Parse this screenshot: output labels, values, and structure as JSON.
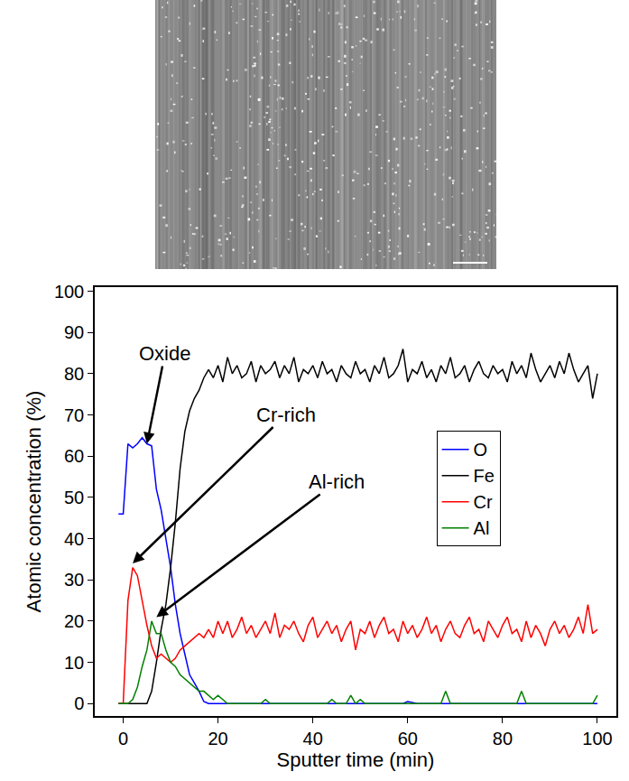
{
  "chart_data": {
    "type": "line",
    "x_label": "Sputter time (min)",
    "y_label": "Atomic concentration (%)",
    "x": [
      -1,
      0,
      1,
      2,
      3,
      4,
      5,
      6,
      7,
      8,
      9,
      10,
      11,
      12,
      13,
      14,
      15,
      16,
      17,
      18,
      19,
      20,
      21,
      22,
      23,
      24,
      25,
      26,
      27,
      28,
      29,
      30,
      31,
      32,
      33,
      34,
      35,
      36,
      37,
      38,
      39,
      40,
      41,
      42,
      43,
      44,
      45,
      46,
      47,
      48,
      49,
      50,
      51,
      52,
      53,
      54,
      55,
      56,
      57,
      58,
      59,
      60,
      61,
      62,
      63,
      64,
      65,
      66,
      67,
      68,
      69,
      70,
      71,
      72,
      73,
      74,
      75,
      76,
      77,
      78,
      79,
      80,
      81,
      82,
      83,
      84,
      85,
      86,
      87,
      88,
      89,
      90,
      91,
      92,
      93,
      94,
      95,
      96,
      97,
      98,
      99,
      100
    ],
    "series": [
      {
        "name": "O",
        "color": "#0000ff",
        "values": [
          46,
          46,
          63,
          62,
          63,
          64.5,
          63,
          62.5,
          52,
          47,
          40,
          33,
          24,
          17,
          12,
          7,
          5,
          3,
          0.5,
          0,
          0,
          0,
          0,
          0,
          0,
          0,
          0,
          0,
          0,
          0,
          0,
          0,
          0,
          0,
          0,
          0,
          0,
          0,
          0,
          0,
          0,
          0,
          0,
          0,
          0,
          0,
          0,
          0,
          0,
          0,
          0,
          0,
          0,
          0,
          0,
          0,
          0,
          0,
          0,
          0,
          0,
          0.5,
          0.3,
          0,
          0,
          0,
          0,
          0,
          0,
          0,
          0,
          0,
          0,
          0,
          0,
          0,
          0,
          0,
          0,
          0,
          0,
          0,
          0,
          0,
          0,
          0,
          0,
          0,
          0,
          0,
          0,
          0,
          0,
          0,
          0,
          0,
          0,
          0,
          0,
          0,
          0,
          0
        ]
      },
      {
        "name": "Fe",
        "color": "#000000",
        "values": [
          0,
          0,
          0,
          0,
          0,
          0,
          0,
          3,
          10,
          18,
          24,
          33,
          44,
          57,
          66,
          71,
          74,
          76,
          79,
          81,
          79,
          82,
          78,
          84,
          80,
          82,
          79,
          80,
          83,
          78,
          82,
          80,
          81,
          83,
          79,
          82,
          80,
          84,
          78,
          81,
          80,
          82,
          79,
          83,
          80,
          81,
          78,
          82,
          80,
          79,
          83,
          80,
          81,
          78,
          82,
          80,
          84,
          79,
          80,
          82,
          86,
          78,
          81,
          80,
          83,
          79,
          81,
          78,
          82,
          80,
          84,
          79,
          80,
          82,
          78,
          81,
          83,
          80,
          79,
          82,
          80,
          81,
          78,
          83,
          80,
          82,
          79,
          85,
          81,
          78,
          80,
          82,
          79,
          83,
          80,
          85,
          81,
          78,
          80,
          82,
          74,
          80
        ]
      },
      {
        "name": "Cr",
        "color": "#ff0000",
        "values": [
          0,
          0,
          25,
          33,
          31,
          25,
          19,
          14,
          11,
          12,
          11,
          10,
          11,
          13,
          14,
          15,
          16,
          17,
          16,
          18,
          16,
          20,
          17,
          20,
          16,
          18,
          21,
          17,
          19,
          16,
          18,
          20,
          17,
          22,
          16,
          19,
          18,
          20,
          17,
          15,
          19,
          21,
          16,
          18,
          20,
          17,
          19,
          15,
          18,
          20,
          13,
          18,
          17,
          20,
          16,
          19,
          21,
          17,
          18,
          15,
          20,
          17,
          19,
          16,
          18,
          21,
          17,
          19,
          15,
          18,
          20,
          17,
          16,
          19,
          21,
          17,
          18,
          15,
          20,
          18,
          16,
          19,
          21,
          17,
          18,
          15,
          20,
          16,
          19,
          17,
          14,
          18,
          20,
          17,
          19,
          16,
          18,
          21,
          17,
          24,
          17,
          18
        ]
      },
      {
        "name": "Al",
        "color": "#008000",
        "values": [
          0,
          0,
          0,
          1,
          4,
          9,
          13,
          20,
          17,
          17,
          13,
          10,
          9,
          7,
          6,
          5,
          4,
          3,
          3,
          2,
          1,
          2,
          1,
          0,
          0,
          0,
          0,
          0,
          0,
          0,
          0,
          1,
          0,
          0,
          0,
          0,
          0,
          0,
          0,
          0,
          0,
          0,
          0,
          0,
          0,
          1,
          0,
          0,
          0,
          2,
          0,
          1,
          0,
          0,
          0,
          0,
          0,
          0,
          0,
          0,
          0,
          0,
          0,
          0,
          0,
          0,
          0,
          0,
          0,
          3,
          0,
          0,
          0,
          0,
          0,
          0,
          0,
          0,
          0,
          0,
          0,
          0,
          0,
          0,
          0,
          3,
          0,
          0,
          0,
          0,
          0,
          0,
          0,
          0,
          0,
          0,
          0,
          0,
          0,
          0,
          0,
          2
        ]
      }
    ],
    "xlim": [
      -6,
      104
    ],
    "ylim": [
      -3,
      101
    ],
    "xticks": [
      0,
      20,
      40,
      60,
      80,
      100
    ],
    "yticks": [
      0,
      10,
      20,
      30,
      40,
      50,
      60,
      70,
      80,
      90,
      100
    ],
    "legend": "right",
    "grid": false,
    "annotations": [
      {
        "text": "Oxide",
        "x": 5,
        "y": 63
      },
      {
        "text": "Cr-rich",
        "x": 2,
        "y": 34
      },
      {
        "text": "Al-rich",
        "x": 7,
        "y": 21
      }
    ]
  }
}
